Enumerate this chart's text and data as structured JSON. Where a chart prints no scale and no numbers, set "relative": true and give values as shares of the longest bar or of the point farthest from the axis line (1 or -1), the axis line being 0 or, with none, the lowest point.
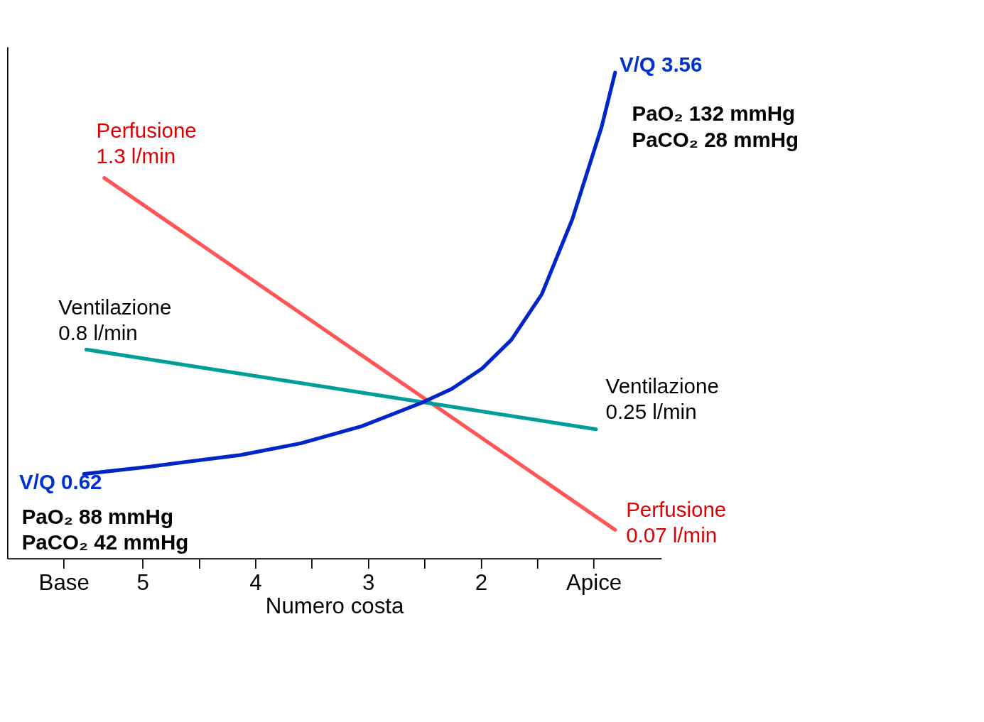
{
  "chart_data": {
    "type": "line",
    "relative": true,
    "xlabel": "Numero costa",
    "xlim": [
      6.2,
      0.4
    ],
    "xticks": [
      {
        "value": 5.7,
        "label": "Base"
      },
      5,
      {
        "value": 4.5,
        "label": null
      },
      4,
      {
        "value": 3.5,
        "label": null
      },
      3,
      {
        "value": 2.5,
        "label": null
      },
      2,
      {
        "value": 1.5,
        "label": null
      },
      {
        "value": 1,
        "label": "Apice"
      }
    ],
    "tick_labels": "x",
    "grid": false,
    "legend": false,
    "marker": "none",
    "line_style": "solid",
    "series": [
      {
        "color": "#ff5555",
        "x": [
          5.34,
          0.81
        ],
        "values": [
          0.783,
          0.059
        ]
      },
      {
        "color": "#009e9a",
        "x": [
          5.5,
          0.98
        ],
        "values": [
          0.43,
          0.266
        ]
      },
      {
        "color": "#0026c8",
        "x": [
          5.52,
          4.94,
          4.13,
          3.6,
          3.06,
          2.53,
          2.26,
          1.99,
          1.73,
          1.46,
          1.19,
          0.93,
          0.81
        ],
        "values": [
          0.174,
          0.189,
          0.213,
          0.237,
          0.272,
          0.32,
          0.349,
          0.391,
          0.45,
          0.544,
          0.698,
          0.888,
          1.0
        ]
      }
    ],
    "annotations": [
      "Perfusione\n1.3 l/min",
      "Ventilazione\n0.8 l/min",
      "Ventilazione\n0.25 l/min",
      "Perfusione\n0.07 l/min",
      "V/Q 3.56",
      "PaO₂ 132 mmHg\nPaCO₂ 28 mmHg",
      "V/Q 0.62",
      "PaO₂ 88 mmHg\nPaCO₂ 42 mmHg"
    ]
  }
}
